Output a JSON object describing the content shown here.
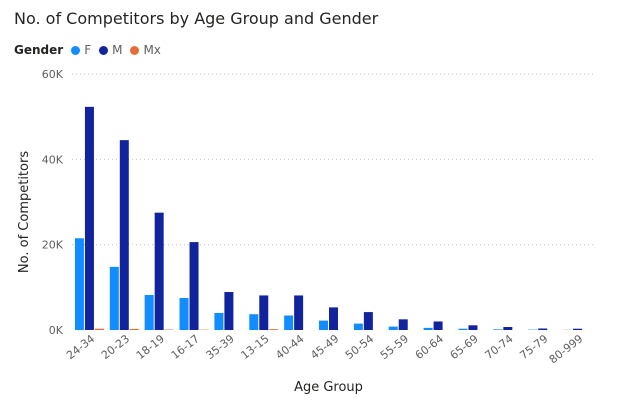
{
  "chart_data": {
    "type": "bar",
    "title": "No. of Competitors by Age Group and Gender",
    "legend_title": "Gender",
    "xlabel": "Age Group",
    "ylabel": "No. of Competitors",
    "ylim": [
      0,
      60000
    ],
    "yticks": [
      0,
      20000,
      40000,
      60000
    ],
    "ytick_labels": [
      "0K",
      "20K",
      "40K",
      "60K"
    ],
    "grid": true,
    "legend_position": "top-left",
    "categories": [
      "24-34",
      "20-23",
      "18-19",
      "16-17",
      "35-39",
      "13-15",
      "40-44",
      "45-49",
      "50-54",
      "55-59",
      "60-64",
      "65-69",
      "70-74",
      "75-79",
      "80-999"
    ],
    "series": [
      {
        "name": "F",
        "color": "#118DFF",
        "values": [
          21500,
          14800,
          8200,
          7500,
          4000,
          3700,
          3400,
          2200,
          1500,
          800,
          500,
          300,
          150,
          80,
          40
        ]
      },
      {
        "name": "M",
        "color": "#12239E",
        "values": [
          52300,
          44500,
          27500,
          20600,
          8900,
          8100,
          8100,
          5300,
          4200,
          2500,
          2000,
          1100,
          700,
          350,
          300
        ]
      },
      {
        "name": "Mx",
        "color": "#E66C37",
        "values": [
          300,
          250,
          100,
          80,
          0,
          200,
          0,
          0,
          0,
          0,
          0,
          0,
          0,
          0,
          0
        ]
      }
    ]
  }
}
